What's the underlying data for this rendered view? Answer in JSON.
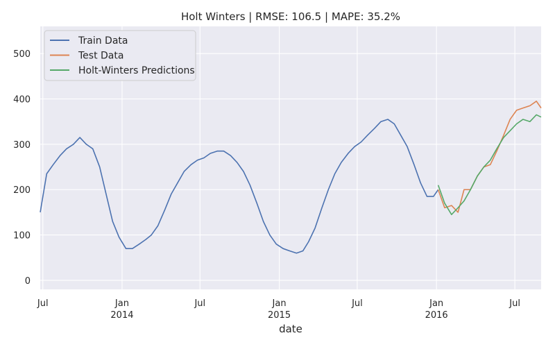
{
  "chart_data": {
    "type": "line",
    "title": "Holt Winters | RMSE: 106.5 | MAPE: 35.2%",
    "xlabel": "date",
    "ylabel": "",
    "x_range": [
      "2013-06-25",
      "2016-08-31"
    ],
    "ylim": [
      -20,
      560
    ],
    "grid": true,
    "legend_position": "top-left",
    "x_ticks": [
      {
        "date": "2013-07-01",
        "label": "Jul",
        "year": ""
      },
      {
        "date": "2014-01-01",
        "label": "Jan",
        "year": "2014"
      },
      {
        "date": "2014-07-01",
        "label": "Jul",
        "year": ""
      },
      {
        "date": "2015-01-01",
        "label": "Jan",
        "year": "2015"
      },
      {
        "date": "2015-07-01",
        "label": "Jul",
        "year": ""
      },
      {
        "date": "2016-01-01",
        "label": "Jan",
        "year": "2016"
      },
      {
        "date": "2016-07-01",
        "label": "Jul",
        "year": ""
      }
    ],
    "y_ticks": [
      0,
      100,
      200,
      300,
      400,
      500
    ],
    "series": [
      {
        "name": "Train Data",
        "color": "#4c72b0",
        "points": [
          [
            "2013-06-25",
            150
          ],
          [
            "2013-07-10",
            235
          ],
          [
            "2013-07-25",
            255
          ],
          [
            "2013-08-10",
            275
          ],
          [
            "2013-08-25",
            290
          ],
          [
            "2013-09-10",
            300
          ],
          [
            "2013-09-25",
            315
          ],
          [
            "2013-10-10",
            300
          ],
          [
            "2013-10-25",
            290
          ],
          [
            "2013-11-10",
            250
          ],
          [
            "2013-11-25",
            190
          ],
          [
            "2013-12-10",
            130
          ],
          [
            "2013-12-25",
            95
          ],
          [
            "2014-01-10",
            70
          ],
          [
            "2014-01-25",
            70
          ],
          [
            "2014-02-10",
            80
          ],
          [
            "2014-02-25",
            90
          ],
          [
            "2014-03-10",
            100
          ],
          [
            "2014-03-25",
            120
          ],
          [
            "2014-04-10",
            155
          ],
          [
            "2014-04-25",
            190
          ],
          [
            "2014-05-10",
            215
          ],
          [
            "2014-05-25",
            240
          ],
          [
            "2014-06-10",
            255
          ],
          [
            "2014-06-25",
            265
          ],
          [
            "2014-07-10",
            270
          ],
          [
            "2014-07-25",
            280
          ],
          [
            "2014-08-10",
            285
          ],
          [
            "2014-08-25",
            285
          ],
          [
            "2014-09-10",
            275
          ],
          [
            "2014-09-25",
            260
          ],
          [
            "2014-10-10",
            240
          ],
          [
            "2014-10-25",
            210
          ],
          [
            "2014-11-10",
            170
          ],
          [
            "2014-11-25",
            130
          ],
          [
            "2014-12-10",
            100
          ],
          [
            "2014-12-25",
            80
          ],
          [
            "2015-01-10",
            70
          ],
          [
            "2015-01-25",
            65
          ],
          [
            "2015-02-10",
            60
          ],
          [
            "2015-02-25",
            65
          ],
          [
            "2015-03-10",
            85
          ],
          [
            "2015-03-25",
            115
          ],
          [
            "2015-04-10",
            160
          ],
          [
            "2015-04-25",
            200
          ],
          [
            "2015-05-10",
            235
          ],
          [
            "2015-05-25",
            260
          ],
          [
            "2015-06-10",
            280
          ],
          [
            "2015-06-25",
            295
          ],
          [
            "2015-07-10",
            305
          ],
          [
            "2015-07-25",
            320
          ],
          [
            "2015-08-10",
            335
          ],
          [
            "2015-08-25",
            350
          ],
          [
            "2015-09-10",
            355
          ],
          [
            "2015-09-25",
            345
          ],
          [
            "2015-10-10",
            320
          ],
          [
            "2015-10-25",
            295
          ],
          [
            "2015-11-10",
            255
          ],
          [
            "2015-11-25",
            215
          ],
          [
            "2015-12-10",
            185
          ],
          [
            "2015-12-25",
            185
          ],
          [
            "2016-01-05",
            200
          ]
        ]
      },
      {
        "name": "Test Data",
        "color": "#dd8452",
        "points": [
          [
            "2016-01-05",
            200
          ],
          [
            "2016-01-20",
            160
          ],
          [
            "2016-02-05",
            165
          ],
          [
            "2016-02-20",
            150
          ],
          [
            "2016-03-05",
            200
          ],
          [
            "2016-03-20",
            200
          ],
          [
            "2016-04-05",
            230
          ],
          [
            "2016-04-20",
            250
          ],
          [
            "2016-05-05",
            255
          ],
          [
            "2016-05-20",
            285
          ],
          [
            "2016-06-05",
            320
          ],
          [
            "2016-06-20",
            355
          ],
          [
            "2016-07-05",
            375
          ],
          [
            "2016-07-20",
            380
          ],
          [
            "2016-08-05",
            385
          ],
          [
            "2016-08-20",
            395
          ],
          [
            "2016-08-31",
            380
          ]
        ]
      },
      {
        "name": "Holt-Winters Predictions",
        "color": "#55a868",
        "points": [
          [
            "2016-01-05",
            210
          ],
          [
            "2016-01-20",
            170
          ],
          [
            "2016-02-05",
            145
          ],
          [
            "2016-02-20",
            160
          ],
          [
            "2016-03-05",
            175
          ],
          [
            "2016-03-20",
            200
          ],
          [
            "2016-04-05",
            230
          ],
          [
            "2016-04-20",
            250
          ],
          [
            "2016-05-05",
            265
          ],
          [
            "2016-05-20",
            290
          ],
          [
            "2016-06-05",
            315
          ],
          [
            "2016-06-20",
            330
          ],
          [
            "2016-07-05",
            345
          ],
          [
            "2016-07-20",
            355
          ],
          [
            "2016-08-05",
            350
          ],
          [
            "2016-08-20",
            365
          ],
          [
            "2016-08-31",
            360
          ]
        ]
      }
    ]
  }
}
